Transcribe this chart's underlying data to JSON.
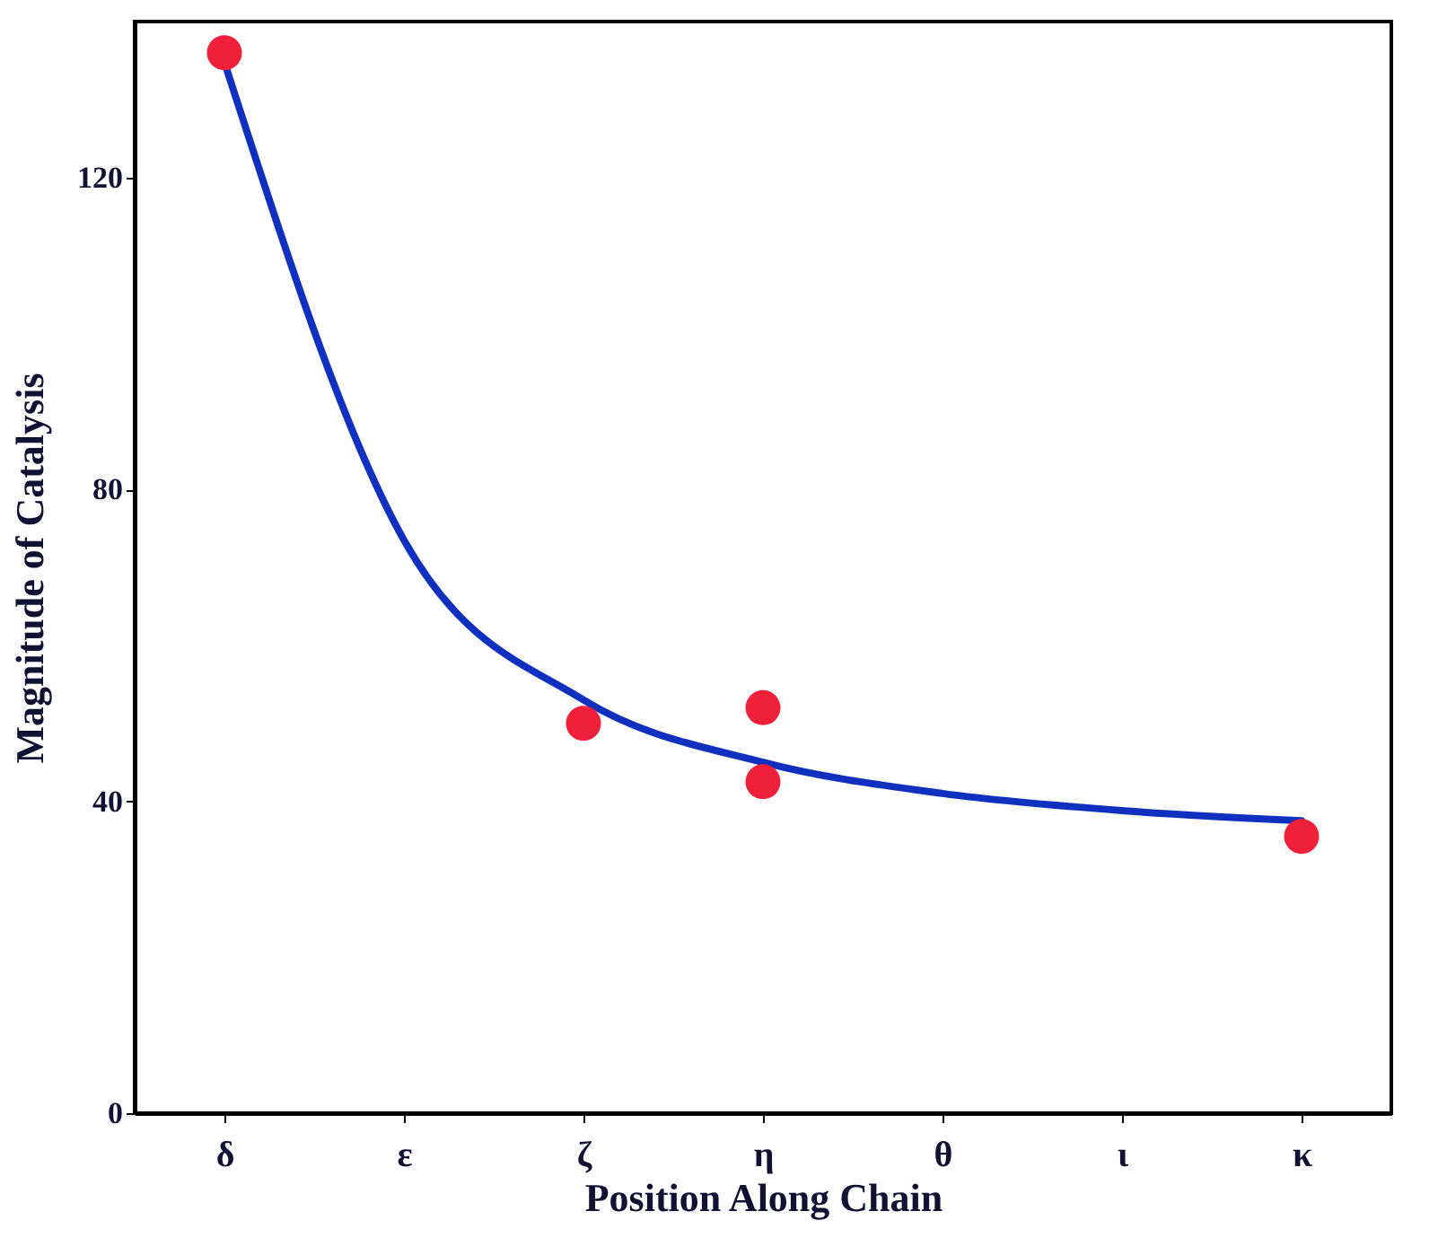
{
  "chart_data": {
    "type": "scatter",
    "xlabel": "Position Along Chain",
    "ylabel": "Magnitude of Catalysis",
    "categories": [
      "δ",
      "ε",
      "ζ",
      "η",
      "θ",
      "ι",
      "κ"
    ],
    "ylim": [
      0,
      140
    ],
    "yticks": [
      0,
      40,
      80,
      120
    ],
    "grid": false,
    "series": [
      {
        "type": "line",
        "color": "#1030c0",
        "marker": "none",
        "line_style": "solid",
        "values": [
          134.8,
          73.5,
          53,
          45,
          41,
          38.8,
          37.5
        ]
      },
      {
        "type": "scatter",
        "color": "#f0203a",
        "marker": "circle",
        "x": [
          "δ",
          "ζ",
          "η",
          "η",
          "κ"
        ],
        "values": [
          136,
          50,
          52,
          42.5,
          35.5
        ]
      }
    ]
  }
}
